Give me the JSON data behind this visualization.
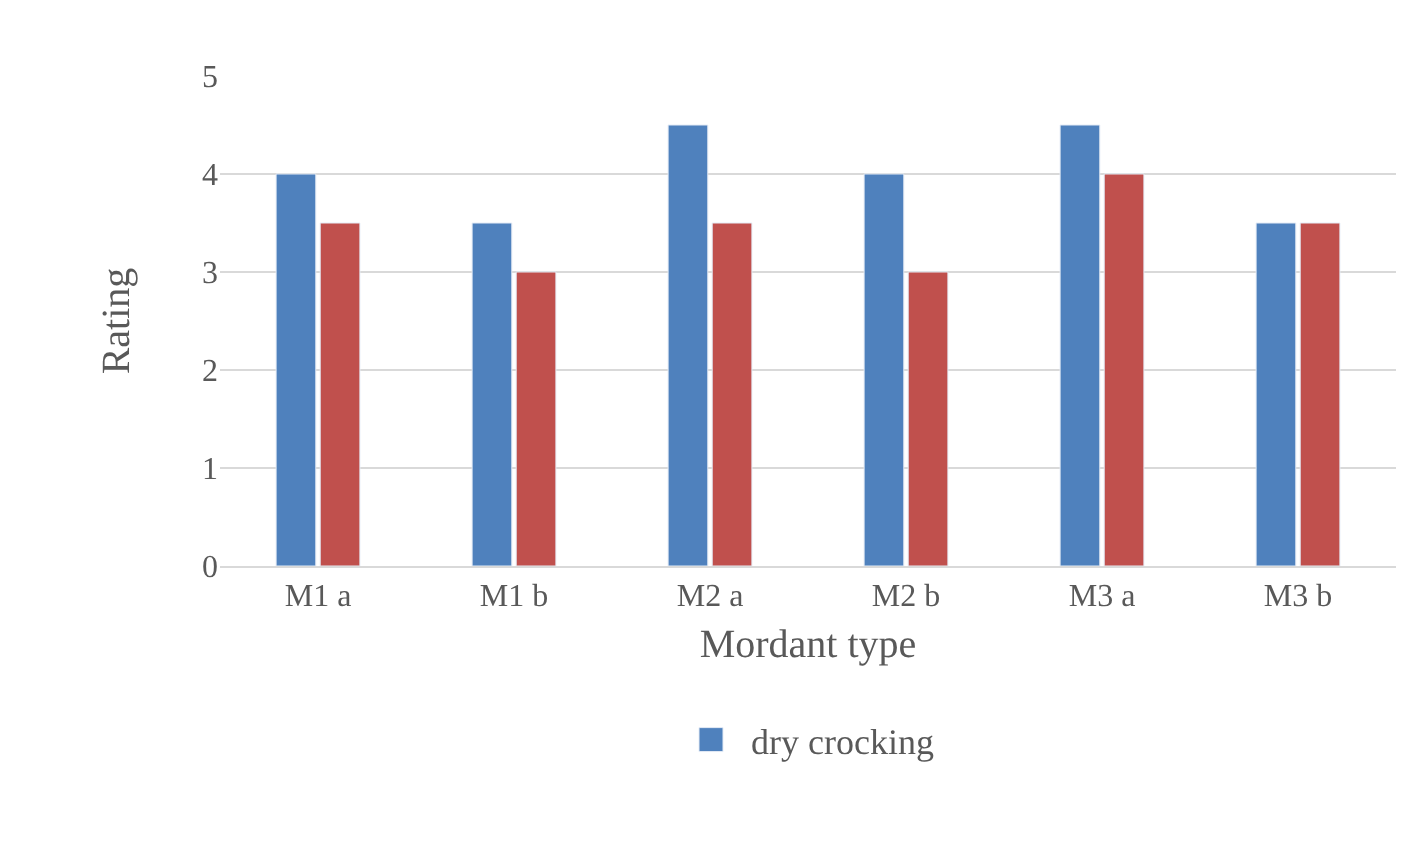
{
  "chart_data": {
    "type": "bar",
    "xlabel": "Mordant type",
    "ylabel": "Rating",
    "categories": [
      "M1 a",
      "M1 b",
      "M2 a",
      "M2 b",
      "M3 a",
      "M3 b"
    ],
    "series": [
      {
        "name": "dry crocking",
        "color": "#4f81bd",
        "values": [
          4,
          3.5,
          4.5,
          4,
          4.5,
          3.5
        ]
      },
      {
        "color": "#c0504d",
        "values": [
          3.5,
          3,
          3.5,
          3,
          4,
          3.5
        ]
      }
    ],
    "ylim": [
      0,
      5
    ],
    "yticks": [
      0,
      1,
      2,
      3,
      4,
      5
    ],
    "grid": "y",
    "legend": "bottom"
  }
}
